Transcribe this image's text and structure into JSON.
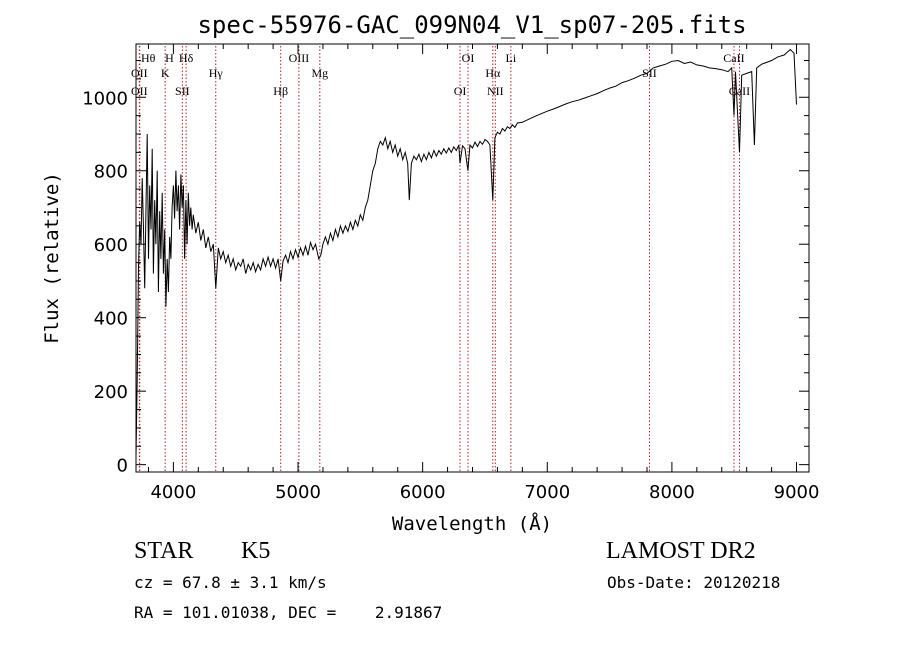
{
  "chart_data": {
    "type": "line",
    "title": "spec-55976-GAC_099N04_V1_sp07-205.fits",
    "xlabel": "Wavelength (Å)",
    "ylabel": "Flux (relative)",
    "xlim": [
      3700,
      9100
    ],
    "ylim": [
      -20,
      1145
    ],
    "xticks": [
      4000,
      5000,
      6000,
      7000,
      8000,
      9000
    ],
    "yticks": [
      0,
      200,
      400,
      600,
      800,
      1000
    ],
    "grid": false,
    "line_color": "#000000",
    "marker_color": "#b22222",
    "series": [
      {
        "points": [
          [
            3700,
            20
          ],
          [
            3710,
            230
          ],
          [
            3720,
            540
          ],
          [
            3730,
            660
          ],
          [
            3740,
            600
          ],
          [
            3750,
            780
          ],
          [
            3760,
            640
          ],
          [
            3770,
            480
          ],
          [
            3780,
            700
          ],
          [
            3790,
            900
          ],
          [
            3800,
            560
          ],
          [
            3810,
            760
          ],
          [
            3820,
            640
          ],
          [
            3830,
            860
          ],
          [
            3840,
            520
          ],
          [
            3850,
            720
          ],
          [
            3860,
            600
          ],
          [
            3870,
            800
          ],
          [
            3880,
            470
          ],
          [
            3890,
            690
          ],
          [
            3900,
            560
          ],
          [
            3910,
            740
          ],
          [
            3920,
            520
          ],
          [
            3930,
            640
          ],
          [
            3940,
            430
          ],
          [
            3950,
            560
          ],
          [
            3960,
            470
          ],
          [
            3970,
            620
          ],
          [
            3980,
            560
          ],
          [
            3990,
            700
          ],
          [
            4000,
            760
          ],
          [
            4010,
            670
          ],
          [
            4020,
            800
          ],
          [
            4030,
            690
          ],
          [
            4040,
            760
          ],
          [
            4050,
            640
          ],
          [
            4060,
            790
          ],
          [
            4070,
            700
          ],
          [
            4080,
            760
          ],
          [
            4090,
            560
          ],
          [
            4100,
            720
          ],
          [
            4110,
            600
          ],
          [
            4120,
            740
          ],
          [
            4130,
            650
          ],
          [
            4140,
            700
          ],
          [
            4150,
            640
          ],
          [
            4160,
            680
          ],
          [
            4180,
            630
          ],
          [
            4200,
            660
          ],
          [
            4220,
            610
          ],
          [
            4240,
            640
          ],
          [
            4260,
            590
          ],
          [
            4280,
            620
          ],
          [
            4300,
            580
          ],
          [
            4320,
            600
          ],
          [
            4340,
            480
          ],
          [
            4360,
            590
          ],
          [
            4380,
            560
          ],
          [
            4400,
            580
          ],
          [
            4420,
            550
          ],
          [
            4440,
            570
          ],
          [
            4460,
            540
          ],
          [
            4480,
            560
          ],
          [
            4500,
            530
          ],
          [
            4520,
            550
          ],
          [
            4540,
            540
          ],
          [
            4560,
            560
          ],
          [
            4580,
            520
          ],
          [
            4600,
            545
          ],
          [
            4620,
            530
          ],
          [
            4640,
            550
          ],
          [
            4660,
            525
          ],
          [
            4680,
            545
          ],
          [
            4700,
            530
          ],
          [
            4720,
            560
          ],
          [
            4740,
            540
          ],
          [
            4760,
            565
          ],
          [
            4780,
            540
          ],
          [
            4800,
            560
          ],
          [
            4820,
            535
          ],
          [
            4840,
            560
          ],
          [
            4861,
            500
          ],
          [
            4880,
            555
          ],
          [
            4900,
            570
          ],
          [
            4920,
            550
          ],
          [
            4940,
            580
          ],
          [
            4960,
            560
          ],
          [
            4980,
            585
          ],
          [
            5000,
            565
          ],
          [
            5020,
            590
          ],
          [
            5040,
            570
          ],
          [
            5060,
            595
          ],
          [
            5080,
            570
          ],
          [
            5100,
            605
          ],
          [
            5120,
            585
          ],
          [
            5140,
            600
          ],
          [
            5167,
            560
          ],
          [
            5183,
            570
          ],
          [
            5200,
            600
          ],
          [
            5220,
            620
          ],
          [
            5240,
            600
          ],
          [
            5260,
            630
          ],
          [
            5280,
            610
          ],
          [
            5300,
            640
          ],
          [
            5320,
            620
          ],
          [
            5340,
            650
          ],
          [
            5360,
            630
          ],
          [
            5380,
            650
          ],
          [
            5400,
            635
          ],
          [
            5420,
            660
          ],
          [
            5440,
            640
          ],
          [
            5460,
            665
          ],
          [
            5480,
            650
          ],
          [
            5500,
            680
          ],
          [
            5520,
            665
          ],
          [
            5540,
            700
          ],
          [
            5560,
            720
          ],
          [
            5580,
            760
          ],
          [
            5600,
            800
          ],
          [
            5620,
            820
          ],
          [
            5640,
            860
          ],
          [
            5660,
            880
          ],
          [
            5680,
            870
          ],
          [
            5700,
            890
          ],
          [
            5720,
            860
          ],
          [
            5740,
            880
          ],
          [
            5760,
            850
          ],
          [
            5780,
            870
          ],
          [
            5800,
            840
          ],
          [
            5820,
            860
          ],
          [
            5840,
            830
          ],
          [
            5860,
            850
          ],
          [
            5880,
            820
          ],
          [
            5893,
            720
          ],
          [
            5910,
            820
          ],
          [
            5930,
            840
          ],
          [
            5950,
            830
          ],
          [
            5970,
            845
          ],
          [
            5990,
            825
          ],
          [
            6010,
            845
          ],
          [
            6030,
            830
          ],
          [
            6050,
            850
          ],
          [
            6070,
            835
          ],
          [
            6090,
            855
          ],
          [
            6110,
            840
          ],
          [
            6130,
            855
          ],
          [
            6150,
            845
          ],
          [
            6170,
            860
          ],
          [
            6190,
            848
          ],
          [
            6210,
            862
          ],
          [
            6230,
            850
          ],
          [
            6250,
            865
          ],
          [
            6270,
            855
          ],
          [
            6290,
            870
          ],
          [
            6300,
            820
          ],
          [
            6320,
            868
          ],
          [
            6340,
            860
          ],
          [
            6363,
            800
          ],
          [
            6380,
            870
          ],
          [
            6400,
            862
          ],
          [
            6420,
            878
          ],
          [
            6440,
            866
          ],
          [
            6460,
            880
          ],
          [
            6480,
            872
          ],
          [
            6500,
            885
          ],
          [
            6520,
            880
          ],
          [
            6540,
            870
          ],
          [
            6563,
            720
          ],
          [
            6580,
            890
          ],
          [
            6600,
            905
          ],
          [
            6620,
            900
          ],
          [
            6640,
            915
          ],
          [
            6660,
            908
          ],
          [
            6680,
            920
          ],
          [
            6700,
            915
          ],
          [
            6720,
            925
          ],
          [
            6740,
            918
          ],
          [
            6760,
            930
          ],
          [
            6800,
            932
          ],
          [
            6850,
            940
          ],
          [
            6900,
            948
          ],
          [
            6950,
            955
          ],
          [
            7000,
            962
          ],
          [
            7050,
            968
          ],
          [
            7100,
            975
          ],
          [
            7150,
            982
          ],
          [
            7200,
            988
          ],
          [
            7250,
            992
          ],
          [
            7300,
            998
          ],
          [
            7350,
            1004
          ],
          [
            7400,
            1010
          ],
          [
            7450,
            1018
          ],
          [
            7500,
            1025
          ],
          [
            7550,
            1030
          ],
          [
            7600,
            1040
          ],
          [
            7650,
            1045
          ],
          [
            7700,
            1052
          ],
          [
            7750,
            1060
          ],
          [
            7800,
            1065
          ],
          [
            7850,
            1080
          ],
          [
            7900,
            1085
          ],
          [
            7950,
            1090
          ],
          [
            8000,
            1098
          ],
          [
            8050,
            1100
          ],
          [
            8100,
            1092
          ],
          [
            8150,
            1096
          ],
          [
            8200,
            1088
          ],
          [
            8250,
            1085
          ],
          [
            8300,
            1080
          ],
          [
            8350,
            1078
          ],
          [
            8400,
            1075
          ],
          [
            8450,
            1070
          ],
          [
            8480,
            1080
          ],
          [
            8498,
            950
          ],
          [
            8510,
            1070
          ],
          [
            8542,
            850
          ],
          [
            8560,
            1060
          ],
          [
            8600,
            1065
          ],
          [
            8640,
            1070
          ],
          [
            8662,
            870
          ],
          [
            8680,
            1080
          ],
          [
            8720,
            1090
          ],
          [
            8760,
            1095
          ],
          [
            8800,
            1100
          ],
          [
            8850,
            1110
          ],
          [
            8900,
            1115
          ],
          [
            8950,
            1130
          ],
          [
            8980,
            1120
          ],
          [
            9000,
            980
          ]
        ]
      }
    ],
    "lines": [
      {
        "top": "Hθ",
        "bottom": "OII",
        "x": 3727
      },
      {
        "top": "OII",
        "bottom": "",
        "x": 3730
      },
      {
        "top": "H",
        "bottom": "K",
        "x": 3934
      },
      {
        "top": "SII",
        "bottom": "",
        "x": 4072
      },
      {
        "top": "Hδ",
        "bottom": "",
        "x": 4102
      },
      {
        "top": "Hγ",
        "bottom": "",
        "x": 4340
      },
      {
        "top": "Hβ",
        "bottom": "",
        "x": 4861
      },
      {
        "top": "OIII",
        "bottom": "",
        "x": 5007
      },
      {
        "top": "Mg",
        "bottom": "",
        "x": 5175
      },
      {
        "top": "OI",
        "bottom": "",
        "x": 6300
      },
      {
        "top": "OI",
        "bottom": "",
        "x": 6364
      },
      {
        "top": "Hα",
        "bottom": "",
        "x": 6563
      },
      {
        "top": "NII",
        "bottom": "",
        "x": 6583
      },
      {
        "top": "Li",
        "bottom": "",
        "x": 6708
      },
      {
        "top": "SII",
        "bottom": "",
        "x": 7820
      },
      {
        "top": "CaII",
        "bottom": "",
        "x": 8498
      },
      {
        "top": "CaII",
        "bottom": "",
        "x": 8542
      }
    ],
    "labels": [
      {
        "text": "Hθ",
        "x": 3798
      },
      {
        "text": "OII",
        "x": 3727
      },
      {
        "text": "OII",
        "x": 3727
      },
      {
        "text": "H",
        "x": 3968
      },
      {
        "text": "K",
        "x": 3934
      },
      {
        "text": "SII",
        "x": 4072
      },
      {
        "text": "Hδ",
        "x": 4102
      },
      {
        "text": "Hγ",
        "x": 4340
      },
      {
        "text": "Hβ",
        "x": 4861
      },
      {
        "text": "OIII",
        "x": 5007
      },
      {
        "text": "Mg",
        "x": 5175
      },
      {
        "text": "OI",
        "x": 6300
      },
      {
        "text": "OI",
        "x": 6364
      },
      {
        "text": "Hα",
        "x": 6563
      },
      {
        "text": "NII",
        "x": 6583
      },
      {
        "text": "Li",
        "x": 6708
      },
      {
        "text": "SII",
        "x": 7820
      },
      {
        "text": "CaII",
        "x": 8542
      },
      {
        "text": "CaII",
        "x": 8498
      }
    ]
  },
  "info": {
    "object_class": "STAR",
    "subclass": "K5",
    "survey": "LAMOST DR2",
    "velocity": "cz = 67.8 ± 3.1 km/s",
    "obs_date": "Obs-Date: 20120218",
    "coordinates": "RA = 101.01038, DEC =    2.91867"
  }
}
